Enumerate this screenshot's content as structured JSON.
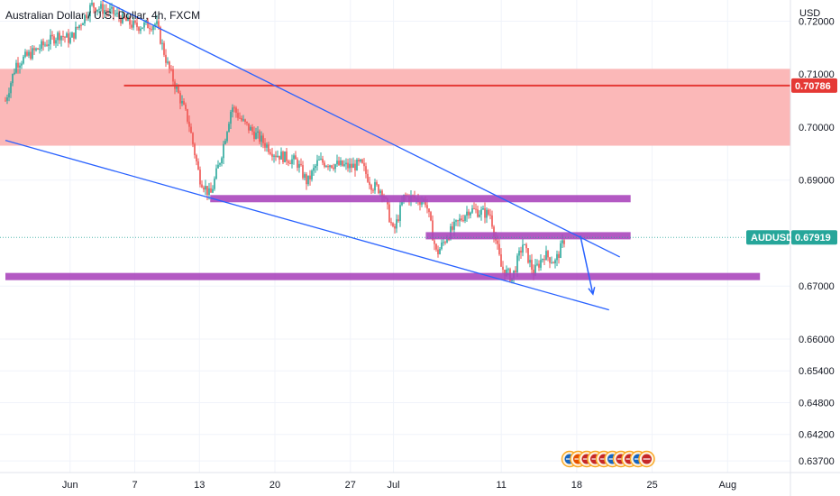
{
  "chart_data": {
    "type": "candlestick",
    "title": "Australian Dollar / U.S. Dollar, 4h, FXCM",
    "currency_label": "USD",
    "symbol": "AUDUSD",
    "last_price": 0.67919,
    "last_price_label": "0.67919",
    "level_price": 0.70786,
    "level_price_label": "0.70786",
    "ylim": [
      0.6348,
      0.724
    ],
    "y_ticks": [
      {
        "value": 0.72,
        "label": "0.72000"
      },
      {
        "value": 0.71,
        "label": "0.71000"
      },
      {
        "value": 0.7,
        "label": "0.70000"
      },
      {
        "value": 0.69,
        "label": "0.69000"
      },
      {
        "value": 0.67,
        "label": "0.67000"
      },
      {
        "value": 0.66,
        "label": "0.66000"
      },
      {
        "value": 0.654,
        "label": "0.65400"
      },
      {
        "value": 0.648,
        "label": "0.64800"
      },
      {
        "value": 0.642,
        "label": "0.64200"
      },
      {
        "value": 0.637,
        "label": "0.63700"
      }
    ],
    "x_ticks": [
      {
        "date": "2022-06-01",
        "label": "Jun"
      },
      {
        "date": "2022-06-07",
        "label": "7"
      },
      {
        "date": "2022-06-13",
        "label": "13"
      },
      {
        "date": "2022-06-20",
        "label": "20"
      },
      {
        "date": "2022-06-27",
        "label": "27"
      },
      {
        "date": "2022-07-01",
        "label": "Jul"
      },
      {
        "date": "2022-07-11",
        "label": "11"
      },
      {
        "date": "2022-07-18",
        "label": "18"
      },
      {
        "date": "2022-07-25",
        "label": "25"
      },
      {
        "date": "2022-08-01",
        "label": "Aug"
      }
    ],
    "price_series": [
      {
        "date": "2022-05-26",
        "close": 0.705
      },
      {
        "date": "2022-05-27",
        "close": 0.712
      },
      {
        "date": "2022-05-31",
        "close": 0.7175
      },
      {
        "date": "2022-06-01",
        "close": 0.7165
      },
      {
        "date": "2022-06-03",
        "close": 0.723
      },
      {
        "date": "2022-06-05",
        "close": 0.7215
      },
      {
        "date": "2022-06-07",
        "close": 0.719
      },
      {
        "date": "2022-06-09",
        "close": 0.7195
      },
      {
        "date": "2022-06-10",
        "close": 0.712
      },
      {
        "date": "2022-06-12",
        "close": 0.701
      },
      {
        "date": "2022-06-13",
        "close": 0.6905
      },
      {
        "date": "2022-06-14",
        "close": 0.687
      },
      {
        "date": "2022-06-15",
        "close": 0.6945
      },
      {
        "date": "2022-06-16",
        "close": 0.704
      },
      {
        "date": "2022-06-17",
        "close": 0.701
      },
      {
        "date": "2022-06-20",
        "close": 0.695
      },
      {
        "date": "2022-06-22",
        "close": 0.6935
      },
      {
        "date": "2022-06-23",
        "close": 0.6895
      },
      {
        "date": "2022-06-24",
        "close": 0.6935
      },
      {
        "date": "2022-06-27",
        "close": 0.6925
      },
      {
        "date": "2022-06-28",
        "close": 0.693
      },
      {
        "date": "2022-06-29",
        "close": 0.689
      },
      {
        "date": "2022-06-30",
        "close": 0.688
      },
      {
        "date": "2022-07-01",
        "close": 0.68
      },
      {
        "date": "2022-07-02",
        "close": 0.687
      },
      {
        "date": "2022-07-04",
        "close": 0.686
      },
      {
        "date": "2022-07-05",
        "close": 0.676
      },
      {
        "date": "2022-07-06",
        "close": 0.6795
      },
      {
        "date": "2022-07-07",
        "close": 0.682
      },
      {
        "date": "2022-07-08",
        "close": 0.6845
      },
      {
        "date": "2022-07-10",
        "close": 0.6835
      },
      {
        "date": "2022-07-11",
        "close": 0.6735
      },
      {
        "date": "2022-07-12",
        "close": 0.6715
      },
      {
        "date": "2022-07-13",
        "close": 0.678
      },
      {
        "date": "2022-07-14",
        "close": 0.6725
      },
      {
        "date": "2022-07-15",
        "close": 0.676
      },
      {
        "date": "2022-07-16",
        "close": 0.6745
      },
      {
        "date": "2022-07-17",
        "close": 0.6795
      }
    ],
    "resistance_zone": [
      0.6965,
      0.711
    ],
    "levels": [
      {
        "name": "support-0.6865",
        "value": 0.6865,
        "from": "2022-06-14",
        "to": "2022-07-23"
      },
      {
        "name": "support-0.6795",
        "value": 0.6795,
        "from": "2022-07-04",
        "to": "2022-07-23"
      },
      {
        "name": "support-0.6718",
        "value": 0.6718,
        "from": "2022-05-26",
        "to": "2022-08-04"
      }
    ],
    "trendlines": [
      {
        "name": "upper-trendline",
        "from": {
          "date": "2022-06-04",
          "value": 0.724
        },
        "to": {
          "date": "2022-07-22",
          "value": 0.6755
        }
      },
      {
        "name": "lower-trendline",
        "from": {
          "date": "2022-05-26",
          "value": 0.6975
        },
        "to": {
          "date": "2022-07-21",
          "value": 0.6655
        }
      }
    ],
    "projection_arrow": {
      "from": {
        "date": "2022-07-18",
        "value": 0.6795
      },
      "to": {
        "date": "2022-07-19",
        "value": 0.6685
      }
    },
    "colors": {
      "up": "#26a69a",
      "down": "#ef5350",
      "trendline": "#2962ff",
      "level": "#ab47bc",
      "zone": "#fbb4b4",
      "price_line": "#e53935",
      "last_price_badge": "#26a69a"
    },
    "grid": true,
    "event_icons": [
      "aud-flag-icon",
      "usd-flag-icon",
      "usd-flag-icon",
      "usd-flag-icon",
      "usd-flag-icon",
      "usd-flag-icon",
      "usd-flag-icon",
      "usd-flag-icon",
      "usd-flag-icon",
      "usd-flag-icon"
    ]
  }
}
